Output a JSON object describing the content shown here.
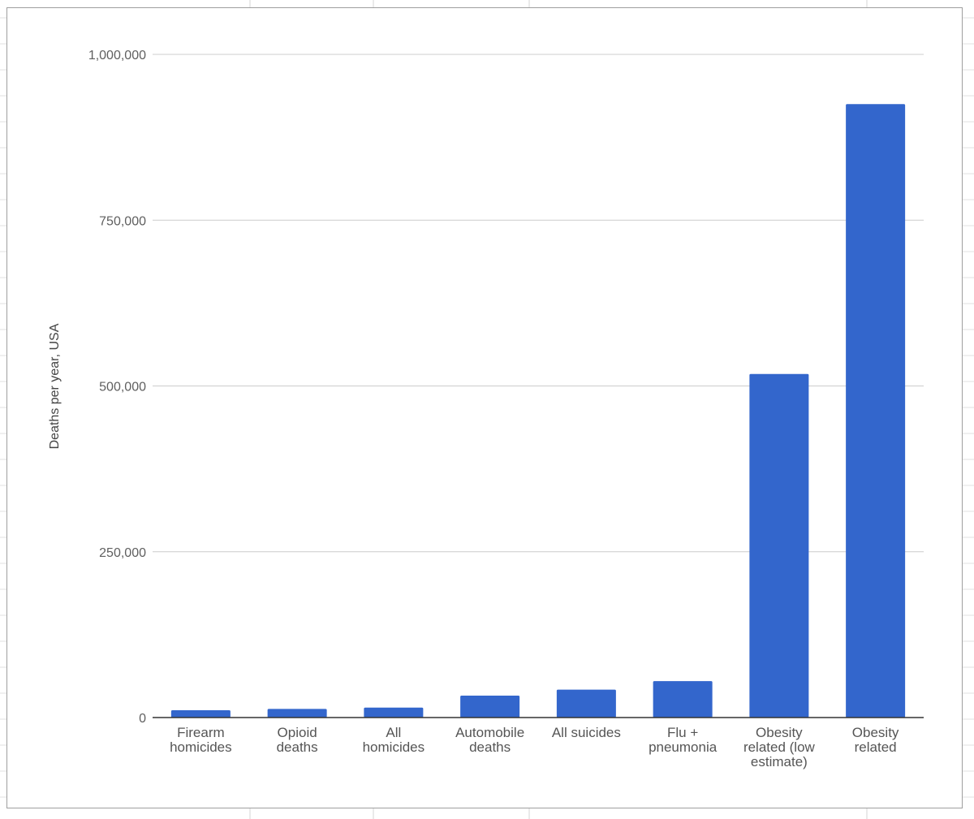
{
  "chart_data": {
    "type": "bar",
    "title": "",
    "xlabel": "",
    "ylabel": "Deaths per year, USA",
    "ylim": [
      0,
      1000000
    ],
    "yticks": [
      0,
      250000,
      500000,
      750000,
      1000000
    ],
    "ytick_labels": [
      "0",
      "250,000",
      "500,000",
      "750,000",
      "1,000,000"
    ],
    "grid": true,
    "legend": "none",
    "bar_color": "#3366cc",
    "categories": [
      [
        "Firearm",
        "homicides"
      ],
      [
        "Opioid",
        "deaths"
      ],
      [
        "All",
        "homicides"
      ],
      [
        "Automobile",
        "deaths"
      ],
      [
        "All suicides"
      ],
      [
        "Flu +",
        "pneumonia"
      ],
      [
        "Obesity",
        "related (low",
        "estimate)"
      ],
      [
        "Obesity",
        "related"
      ]
    ],
    "values": [
      11000,
      13000,
      15000,
      33000,
      42000,
      55000,
      518000,
      925000
    ]
  }
}
